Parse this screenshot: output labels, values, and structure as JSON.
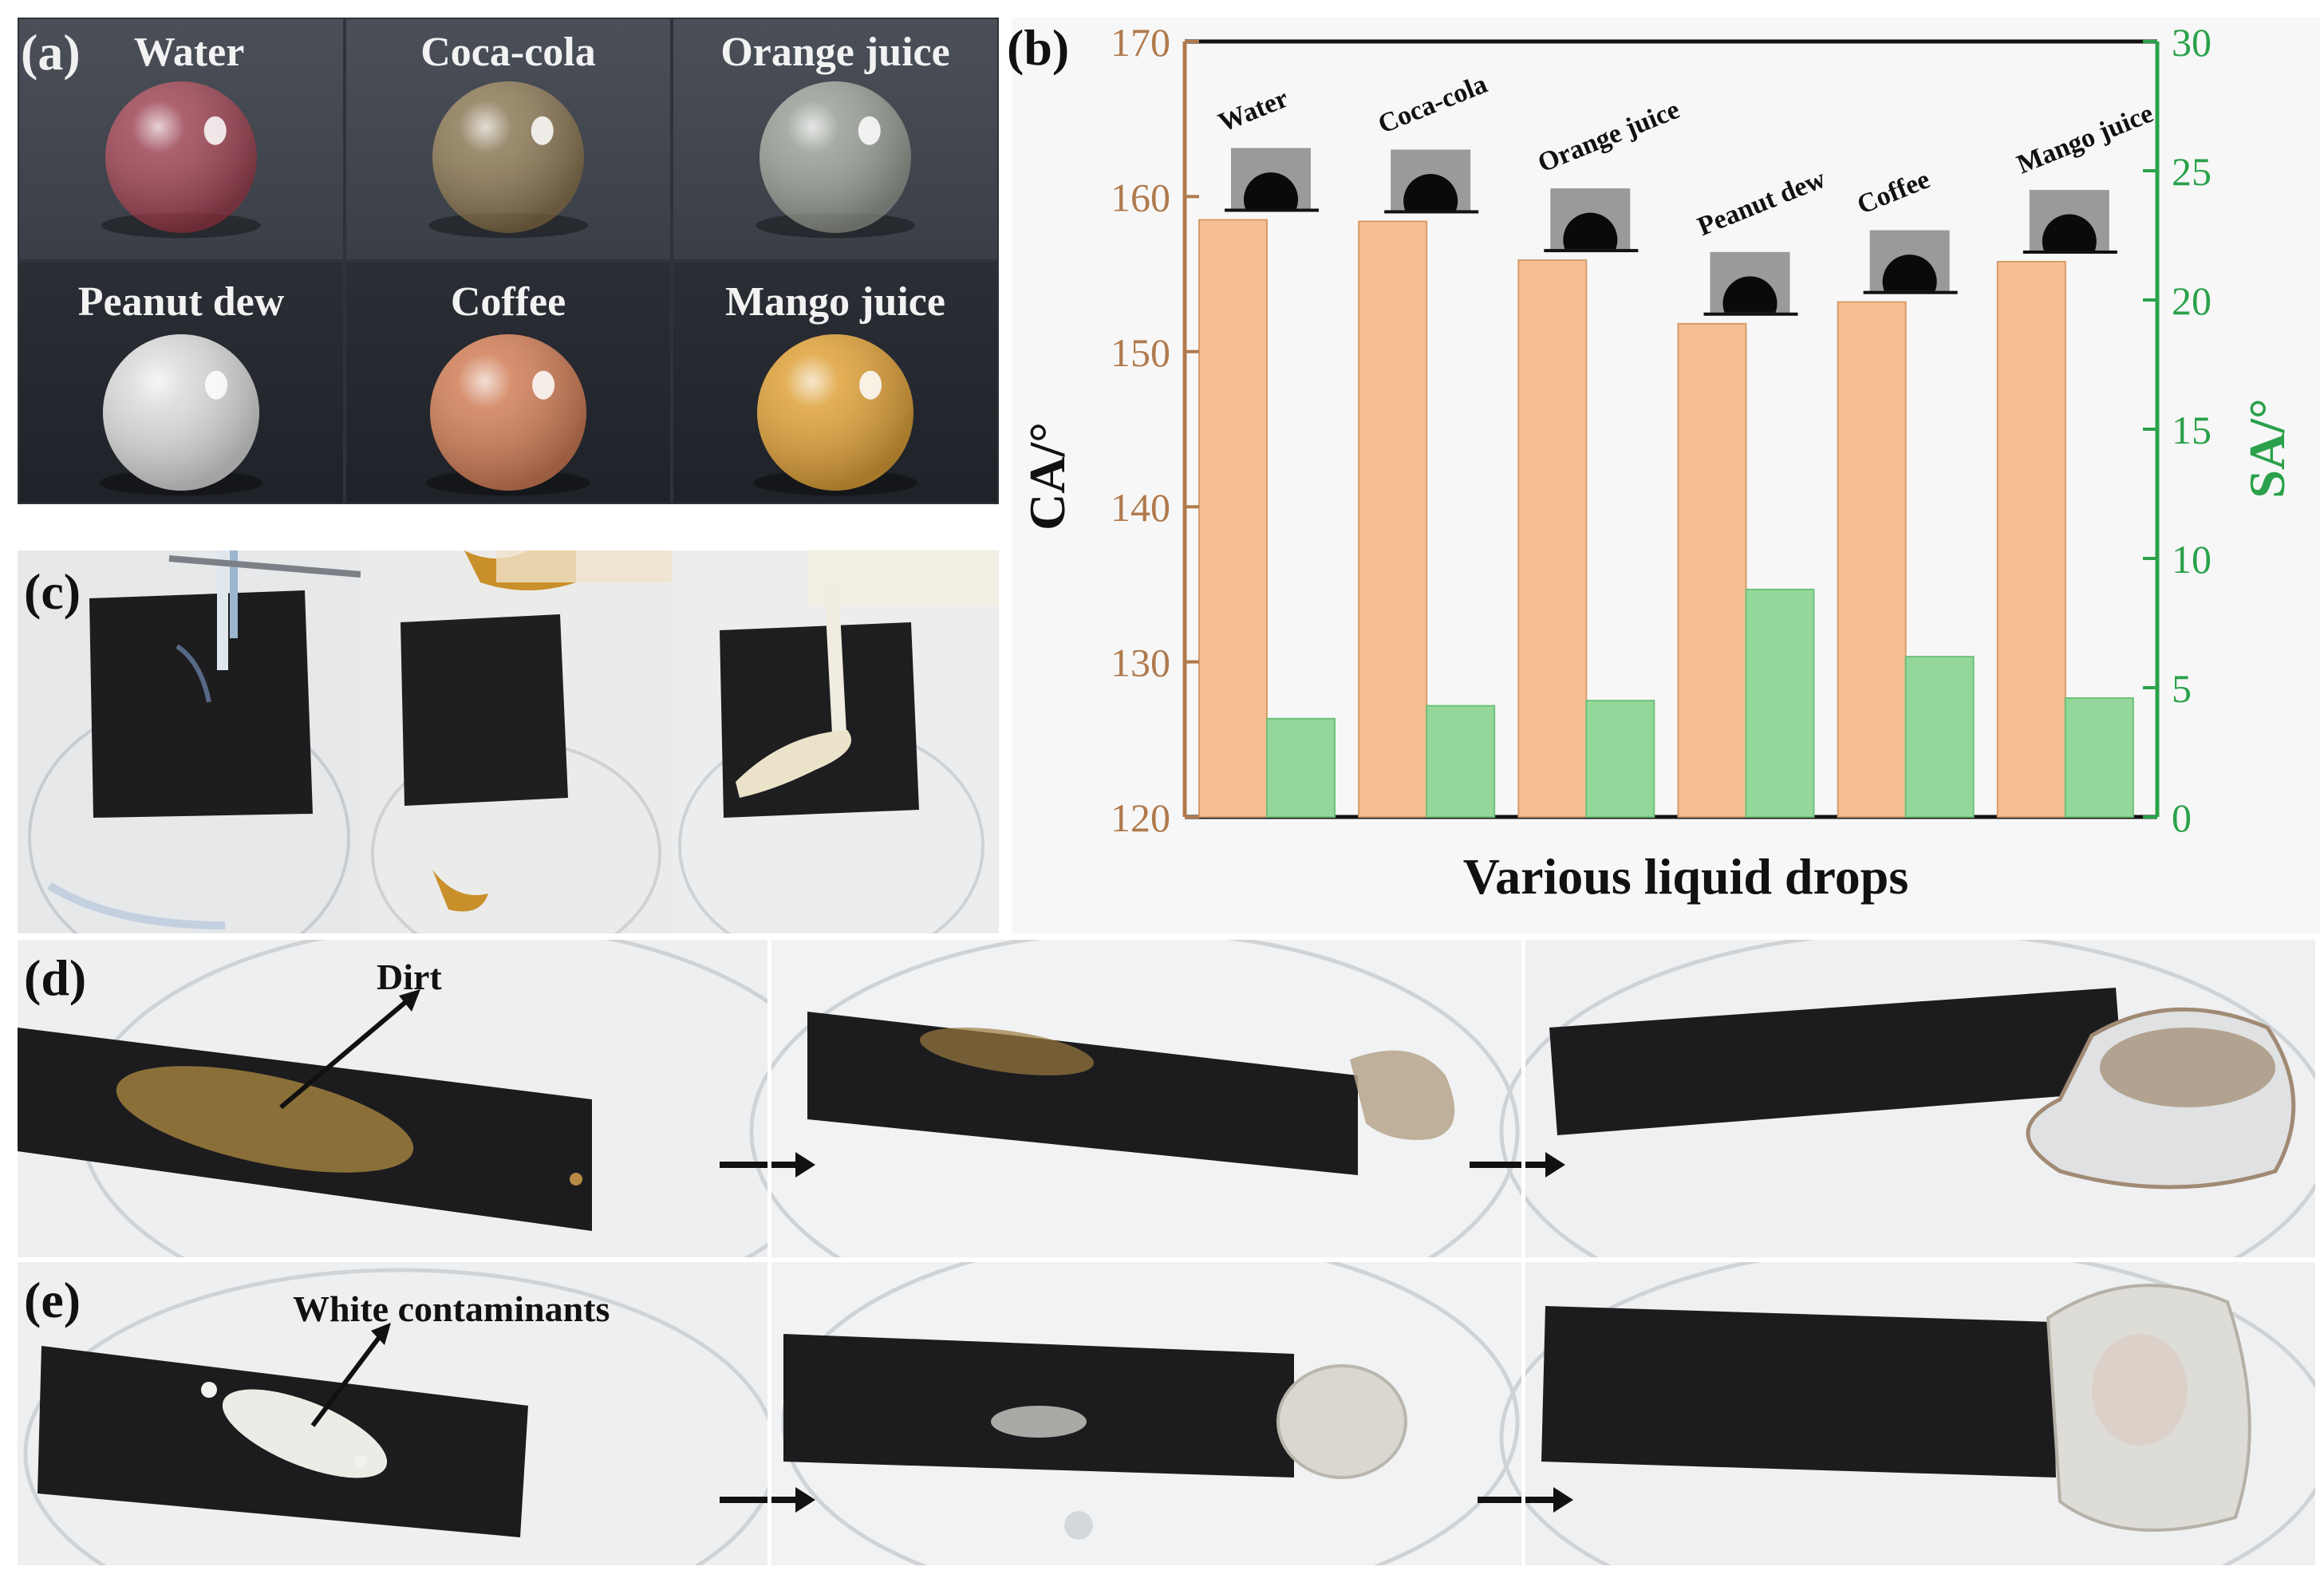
{
  "panels": {
    "a": {
      "label": "(a)",
      "drops": [
        "Water",
        "Coca-cola",
        "Orange juice",
        "Peanut dew",
        "Coffee",
        "Mango juice"
      ],
      "colors": [
        "#e8455a",
        "#c9a35c",
        "#dfe6cf",
        "#e4e4e4",
        "#d9825a",
        "#e8a83a"
      ]
    },
    "b": {
      "label": "(b)"
    },
    "c": {
      "label": "(c)"
    },
    "d": {
      "label": "(d)",
      "annotation": "Dirt"
    },
    "e": {
      "label": "(e)",
      "annotation": "White contaminants"
    }
  },
  "chart_data": {
    "type": "bar",
    "categories": [
      "Water",
      "Coca-cola",
      "Orange juice",
      "Peanut dew",
      "Coffee",
      "Mango juice"
    ],
    "xlabel": "Various liquid drops",
    "ylabel": "CA/°",
    "ylabel_right": "SA/°",
    "ylim": [
      120,
      170
    ],
    "yticks": [
      120,
      130,
      140,
      150,
      160,
      170
    ],
    "ylim_right": [
      0,
      30
    ],
    "yticks_right": [
      0,
      5,
      10,
      15,
      20,
      25,
      30
    ],
    "grid": false,
    "series": [
      {
        "axis": "left",
        "color": "#f5bf93",
        "values": [
          158.5,
          158.4,
          155.9,
          151.8,
          153.2,
          155.8
        ]
      },
      {
        "axis": "right",
        "color": "#93d89a",
        "values": [
          3.8,
          4.3,
          4.5,
          8.8,
          6.2,
          4.6
        ]
      }
    ],
    "axis_colors": {
      "left": "#b07a4d",
      "right": "#2aa14a"
    }
  }
}
